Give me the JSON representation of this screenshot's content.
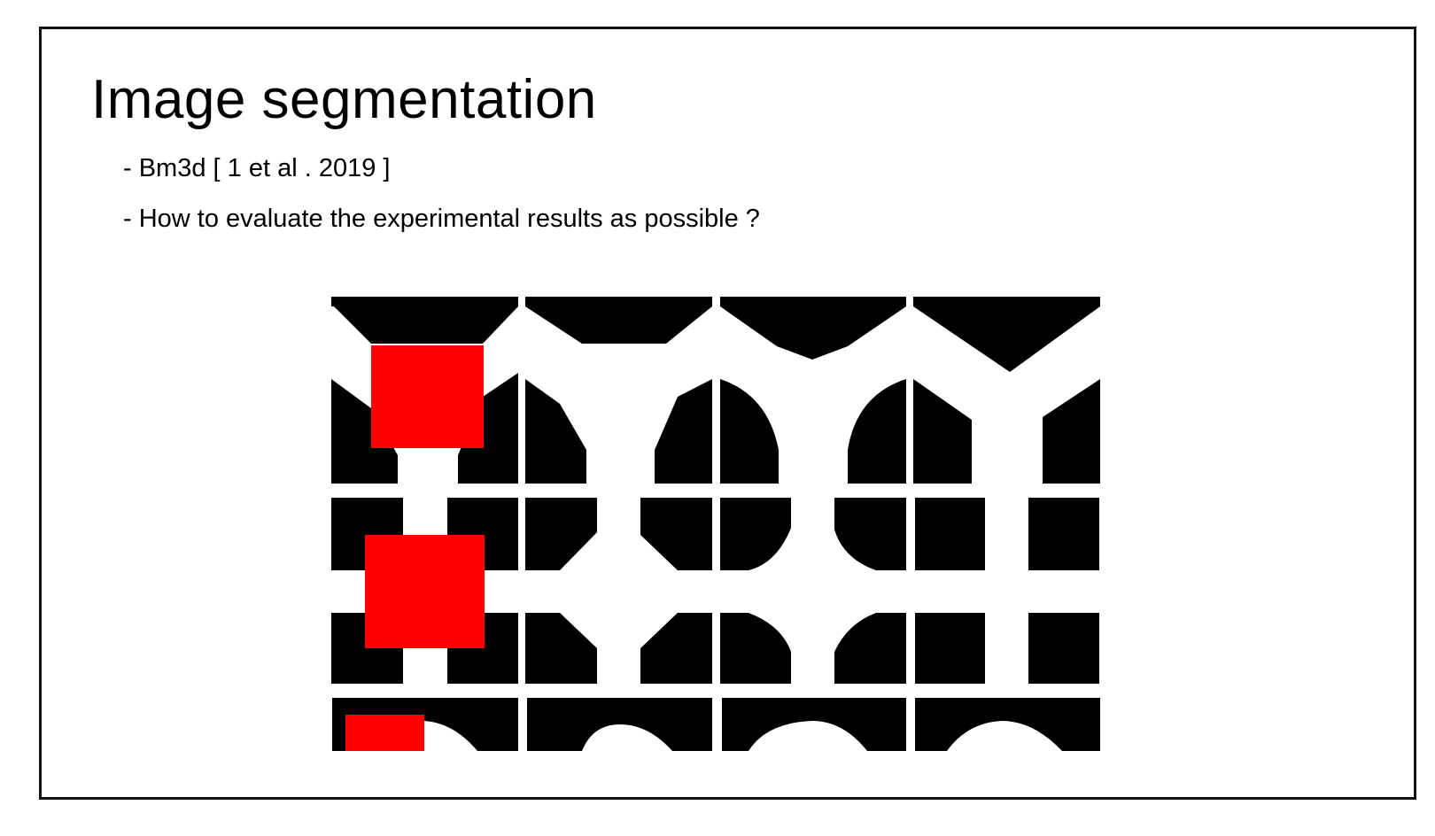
{
  "slide": {
    "title": "Image segmentation",
    "bullets": [
      "- Bm3d [ 1 et al . 2019 ]",
      "- How to evaluate the experimental results as possible ?"
    ]
  },
  "figure": {
    "description_icon": "segmentation-result-grid",
    "colors": {
      "foreground": "#000000",
      "background": "#ffffff",
      "highlight": "#ff0000"
    }
  }
}
